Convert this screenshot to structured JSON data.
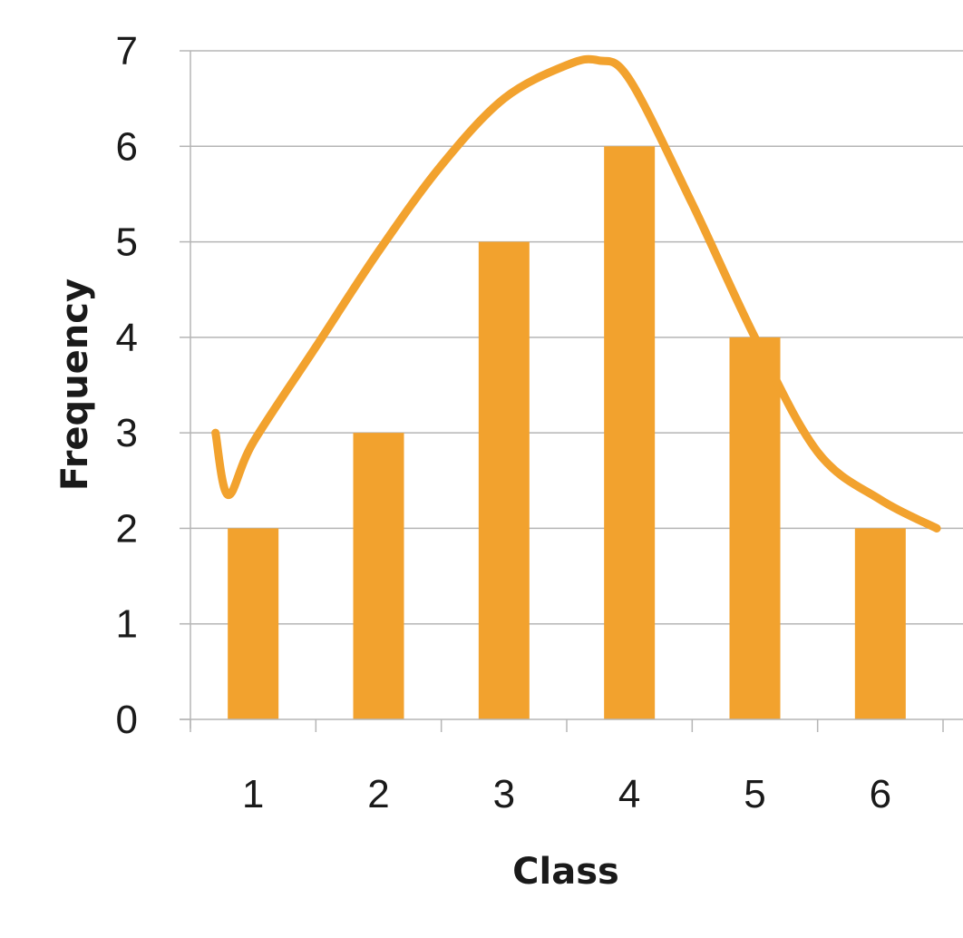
{
  "chart_data": {
    "type": "bar",
    "title": "",
    "xlabel": "Class",
    "ylabel": "Frequency",
    "categories": [
      "1",
      "2",
      "3",
      "4",
      "5",
      "6"
    ],
    "values": [
      2,
      3,
      5,
      6,
      4,
      2
    ],
    "ylim": [
      0,
      7
    ],
    "yticks": [
      "0",
      "1",
      "2",
      "3",
      "4",
      "5",
      "6",
      "7"
    ],
    "grid": true,
    "legend": "none",
    "overlay_curve": {
      "type": "line",
      "x": [
        0.7,
        0.8,
        1.0,
        1.5,
        2.0,
        2.5,
        3.0,
        3.5,
        3.75,
        4.0,
        4.5,
        5.0,
        5.5,
        6.0,
        6.45
      ],
      "y": [
        3.0,
        2.35,
        2.9,
        3.9,
        4.9,
        5.8,
        6.5,
        6.85,
        6.9,
        6.7,
        5.4,
        4.0,
        2.8,
        2.3,
        2.0
      ]
    },
    "colors": {
      "bar": "#F2A22E",
      "curve": "#F2A22E",
      "grid": "#B5B5B5"
    }
  }
}
